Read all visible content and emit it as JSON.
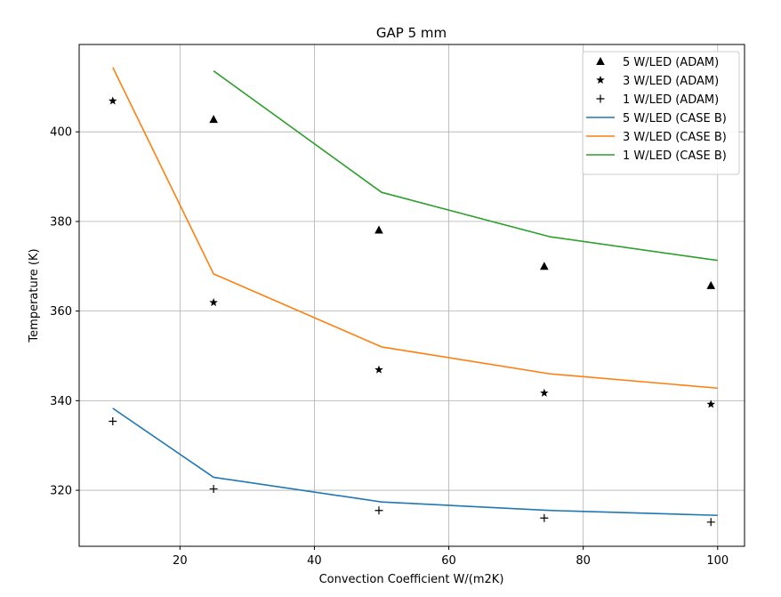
{
  "chart_data": {
    "type": "line",
    "title": "GAP 5 mm",
    "xlabel": "Convection Coefficient W/(m2K)",
    "ylabel": "Temperature (K)",
    "xlim": [
      5,
      104
    ],
    "ylim": [
      307.5,
      419.5
    ],
    "xticks": [
      20,
      40,
      60,
      80,
      100
    ],
    "yticks": [
      320,
      340,
      360,
      380,
      400
    ],
    "grid": true,
    "legend_position": "top-right",
    "series": [
      {
        "name": "5 W/LED (ADAM)",
        "kind": "scatter",
        "marker": "triangle",
        "color": "#000000",
        "x": [
          25,
          49.6,
          74.2,
          99
        ],
        "y": [
          402.8,
          378.1,
          370.0,
          365.7
        ]
      },
      {
        "name": "3 W/LED (ADAM)",
        "kind": "scatter",
        "marker": "star",
        "color": "#000000",
        "x": [
          10,
          25,
          49.6,
          74.2,
          99
        ],
        "y": [
          406.9,
          361.9,
          346.9,
          341.7,
          339.2
        ]
      },
      {
        "name": "1 W/LED (ADAM)",
        "kind": "scatter",
        "marker": "plus",
        "color": "#000000",
        "x": [
          10,
          25,
          49.6,
          74.2,
          99
        ],
        "y": [
          335.4,
          320.3,
          315.5,
          313.8,
          312.9
        ]
      },
      {
        "name": "5 W/LED (CASE B)",
        "kind": "line",
        "color": "#1f77b4",
        "x": [
          10,
          25,
          50,
          75,
          100
        ],
        "y": [
          338.3,
          322.9,
          317.4,
          315.5,
          314.4
        ]
      },
      {
        "name": "3 W/LED (CASE B)",
        "kind": "line",
        "color": "#ff7f0e",
        "x": [
          10,
          25,
          50,
          75,
          100
        ],
        "y": [
          414.4,
          368.3,
          352.0,
          346.0,
          342.8
        ]
      },
      {
        "name": "1 W/LED (CASE B)",
        "kind": "line",
        "color": "#2ca02c",
        "x": [
          25,
          50,
          75,
          100
        ],
        "y": [
          413.6,
          386.5,
          376.6,
          371.3
        ]
      }
    ]
  }
}
